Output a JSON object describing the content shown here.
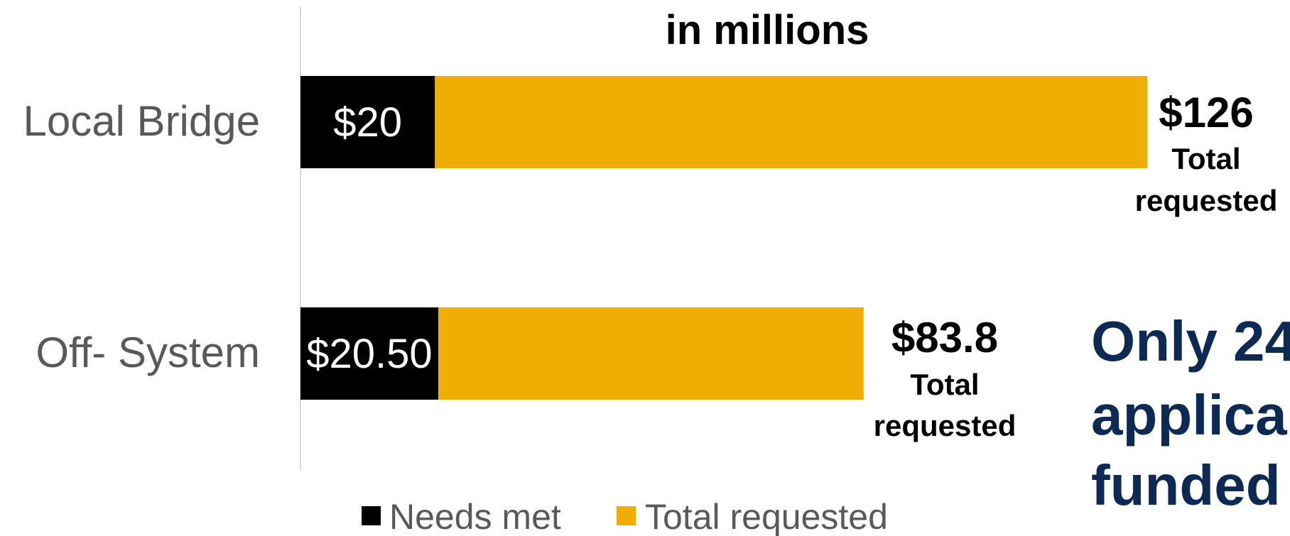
{
  "chart_data": {
    "type": "bar",
    "orientation": "horizontal",
    "stacked": true,
    "subtitle": "in millions",
    "categories": [
      "Local Bridge",
      "Off- System"
    ],
    "series": [
      {
        "name": "Needs met",
        "color": "#000000",
        "values": [
          20,
          20.5
        ],
        "labels": [
          "$20",
          "$20.50"
        ]
      },
      {
        "name": "Total requested",
        "color": "#f0ae05",
        "values": [
          106,
          63.3
        ]
      }
    ],
    "totals": [
      {
        "value_label": "$126",
        "caption_line1": "Total",
        "caption_line2": "requested"
      },
      {
        "value_label": "$83.8",
        "caption_line1": "Total",
        "caption_line2": "requested"
      }
    ],
    "xlim": [
      0,
      126
    ],
    "grid": false,
    "legend": {
      "position": "bottom",
      "entries": [
        "Needs met",
        "Total requested"
      ]
    }
  },
  "callout": {
    "line1": "Only 24",
    "line2": "applica",
    "line3": "funded",
    "color": "#0d2a54"
  }
}
